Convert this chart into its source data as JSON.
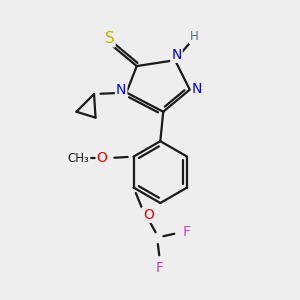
{
  "background_color": "#eeeeee",
  "bond_color": "#1a1a1a",
  "atom_colors": {
    "N": "#0000ee",
    "S": "#bbbb00",
    "O": "#ee0000",
    "F": "#cc44cc",
    "H_label": "#447788",
    "C": "#1a1a1a"
  },
  "figure_size": [
    3.0,
    3.0
  ],
  "dpi": 100,
  "lw": 1.6
}
